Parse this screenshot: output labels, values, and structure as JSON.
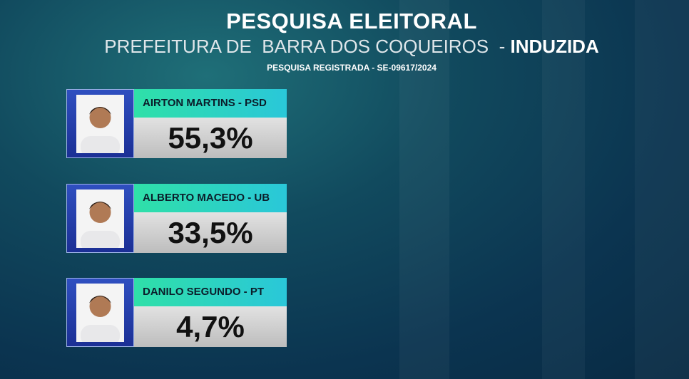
{
  "header": {
    "title": "PESQUISA ELEITORAL",
    "place": "PREFEITURA DE  BARRA DOS COQUEIROS",
    "separator": "-",
    "variant": "INDUZIDA",
    "registration": "PESQUISA REGISTRADA - SE-09617/2024"
  },
  "candidates": [
    {
      "name": "AIRTON MARTINS - PSD",
      "result": "55,3%"
    },
    {
      "name": "ALBERTO MACEDO - UB",
      "result": "33,5%"
    },
    {
      "name": "DANILO SEGUNDO - PT",
      "result": "4,7%"
    }
  ]
}
